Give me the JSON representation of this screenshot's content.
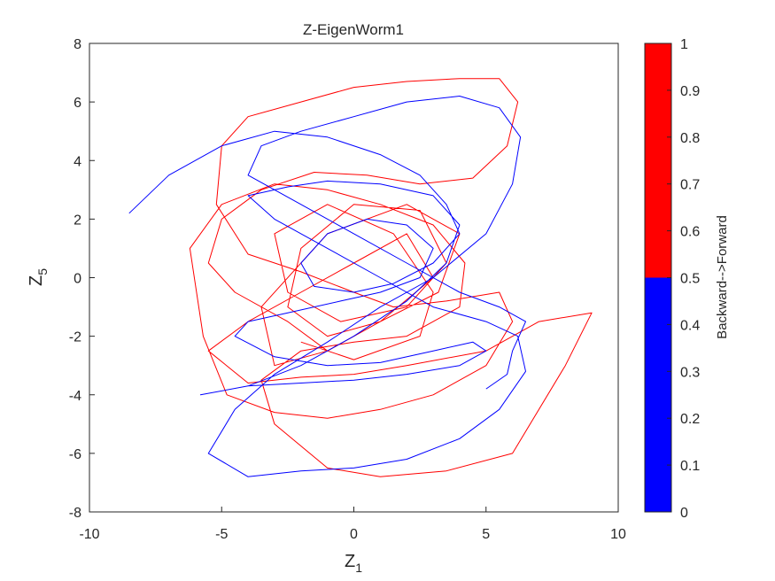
{
  "chart_data": {
    "type": "line",
    "title": "Z-EigenWorm1",
    "xlabel": {
      "base": "Z",
      "sub": "1"
    },
    "ylabel": {
      "base": "Z",
      "sub": "5"
    },
    "xlim": [
      -10,
      10
    ],
    "ylim": [
      -8,
      8
    ],
    "xticks": [
      "-10",
      "-5",
      "0",
      "5",
      "10"
    ],
    "yticks": [
      "-8",
      "-6",
      "-4",
      "-2",
      "0",
      "2",
      "4",
      "6",
      "8"
    ],
    "grid": false,
    "series": [
      {
        "color": "#ff0000",
        "x": [
          -1,
          -2.5,
          -4.5,
          -5.5,
          -5,
          -3.5,
          -1.5,
          0.5,
          2.5,
          4.5,
          5.8,
          6.2,
          5.5,
          4,
          2,
          0,
          -2,
          -4,
          -5,
          -5.2,
          -4,
          -2,
          0,
          1.5,
          3.5,
          5.5,
          6,
          5,
          3,
          1,
          -1,
          -3,
          -4.8,
          -5.7,
          -6.2,
          -5,
          -3,
          -1,
          1,
          3,
          4.2,
          4,
          2,
          0,
          -2,
          -3.5,
          -3,
          -1,
          1,
          3.5,
          6,
          8,
          9,
          7,
          5,
          2,
          0,
          -2,
          -4,
          -5.5,
          -4,
          -2,
          0,
          2,
          3,
          1,
          -1,
          -3,
          -3.5,
          -1,
          2,
          4,
          3.2,
          1,
          -1,
          -2.5,
          -2,
          0,
          2.5,
          3.5,
          2,
          -0.5,
          -2.5,
          -3,
          -1,
          1.5,
          3,
          2.5,
          0,
          -2
        ],
        "y": [
          -2.5,
          -1.5,
          -0.5,
          0.5,
          2,
          3,
          3.6,
          3.5,
          3.2,
          3.4,
          4.5,
          6,
          6.8,
          6.8,
          6.7,
          6.5,
          6,
          5.5,
          4.5,
          2.5,
          0.8,
          0.2,
          -0.5,
          -1,
          -0.8,
          -0.5,
          -1.5,
          -3,
          -4,
          -4.5,
          -4.8,
          -4.6,
          -4,
          -2,
          1,
          2.5,
          3.2,
          3,
          2.5,
          1.8,
          0.5,
          -1,
          -2,
          -2.2,
          -2.5,
          -3.5,
          -5,
          -6.5,
          -6.8,
          -6.6,
          -6,
          -3,
          -1.2,
          -1.5,
          -2.5,
          -3,
          -3.3,
          -3.4,
          -3.6,
          -2.5,
          -1.5,
          -0.5,
          0.5,
          1.5,
          0,
          -1.5,
          -2.5,
          -3,
          -1,
          1.5,
          2.5,
          1.5,
          -0.5,
          -1.5,
          -2,
          -1,
          1,
          2.5,
          2.3,
          0.5,
          -1,
          -1.5,
          -0.5,
          1.5,
          2.5,
          1.5,
          -0.5,
          -2,
          -2.8,
          -2.2
        ]
      },
      {
        "color": "#0000ff",
        "x": [
          -8.5,
          -7,
          -5,
          -3,
          -1,
          1,
          2.5,
          3.5,
          4,
          3,
          1.5,
          0,
          -1.5,
          -2,
          -1,
          0.5,
          2,
          3,
          2.5,
          1,
          -0.5,
          -2.5,
          -4,
          -4.5,
          -3,
          -1,
          1,
          3,
          4.5,
          5,
          4,
          2,
          0,
          -2,
          -4,
          -5.8,
          -4,
          -2,
          0,
          2,
          3.5,
          4,
          3,
          1,
          -1,
          -2.5,
          -3.5,
          -4,
          -3,
          -1,
          1,
          3,
          5,
          6.2,
          6.5,
          5.5,
          4,
          2,
          0,
          -2,
          -4,
          -5.5,
          -4.5,
          -3,
          -1,
          1,
          3,
          5,
          6,
          6.3,
          5.5,
          4,
          2,
          0,
          -2,
          -3.5,
          -4,
          -2,
          0,
          2,
          4,
          5.5,
          6.5,
          6,
          5.8,
          5
        ],
        "y": [
          2.2,
          3.5,
          4.5,
          5,
          4.8,
          4.2,
          3.5,
          2.5,
          1.5,
          0.5,
          -0.2,
          -0.5,
          -0.3,
          0.5,
          1.5,
          2,
          1.8,
          1,
          0,
          -0.5,
          -0.8,
          -1.2,
          -1.5,
          -2,
          -2.7,
          -3,
          -2.9,
          -2.5,
          -2.2,
          -2.5,
          -3,
          -3.3,
          -3.5,
          -3.6,
          -3.7,
          -4,
          -3.7,
          -3,
          -2,
          -0.8,
          0.5,
          1.8,
          2.8,
          3.2,
          3.3,
          3.1,
          2.9,
          2.8,
          2,
          1,
          0,
          -1,
          -1.5,
          -2,
          -3.2,
          -4.5,
          -5.5,
          -6.2,
          -6.5,
          -6.6,
          -6.8,
          -6,
          -4.5,
          -3.3,
          -2.2,
          -1,
          0,
          1.5,
          3.2,
          4.8,
          5.8,
          6.2,
          6,
          5.5,
          5,
          4.5,
          3.5,
          2.5,
          1.5,
          0.5,
          -0.5,
          -1,
          -1.5,
          -2.5,
          -3.3,
          -3.8
        ]
      }
    ],
    "colorbar": {
      "label": "Backward-->Forward",
      "ticks": [
        "0",
        "0.1",
        "0.2",
        "0.3",
        "0.4",
        "0.5",
        "0.6",
        "0.7",
        "0.8",
        "0.9",
        "1"
      ],
      "range": [
        0,
        1
      ],
      "segments": [
        {
          "from": 0,
          "to": 0.5,
          "color": "#0000ff"
        },
        {
          "from": 0.5,
          "to": 1,
          "color": "#ff0000"
        }
      ]
    }
  }
}
